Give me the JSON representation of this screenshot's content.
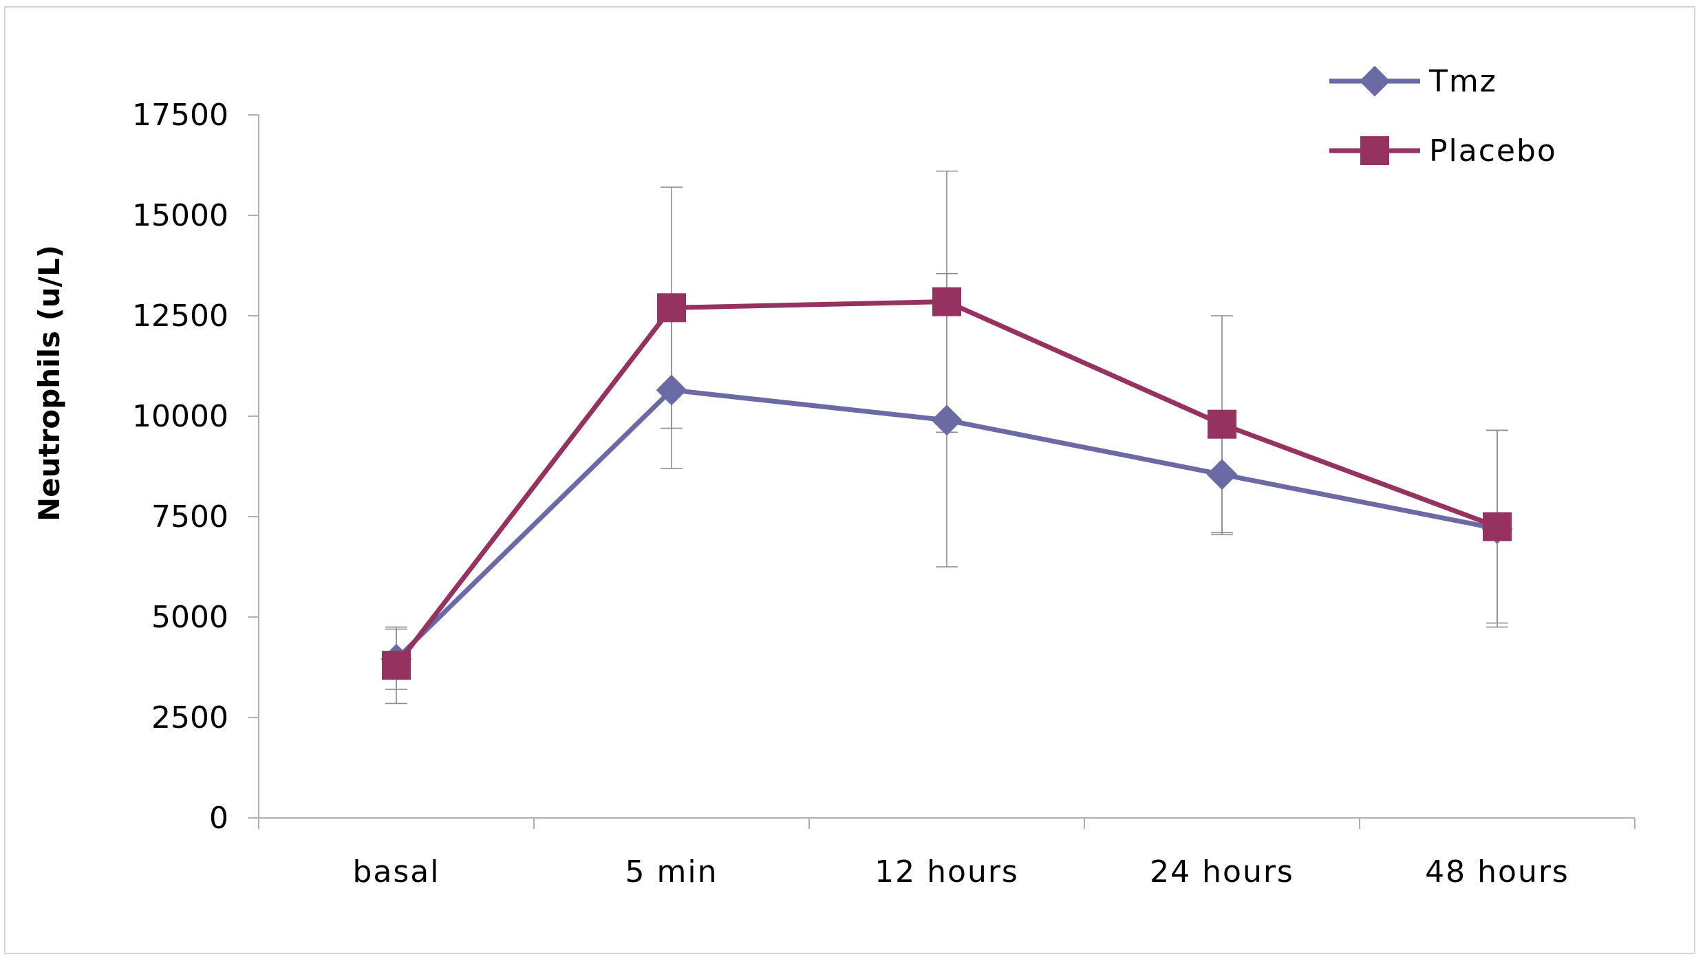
{
  "chart_data": {
    "type": "line",
    "title": "",
    "xlabel": "",
    "ylabel": "Neutrophils (u/L)",
    "categories": [
      "basal",
      "5 min",
      "12 hours",
      "24 hours",
      "48 hours"
    ],
    "ylim": [
      0,
      17500
    ],
    "yticks": [
      0,
      2500,
      5000,
      7500,
      10000,
      12500,
      15000,
      17500
    ],
    "ytick_labels": [
      "0",
      "2500",
      "5000",
      "7500",
      "10000",
      "12500",
      "15000",
      "17500"
    ],
    "grid": false,
    "legend_position": "top-right",
    "series": [
      {
        "name": "Tmz",
        "color": "#6b6aa5",
        "marker": "diamond",
        "values": [
          3950,
          10650,
          9900,
          8550,
          7200
        ],
        "error": [
          750,
          1950,
          3650,
          1500,
          2450
        ]
      },
      {
        "name": "Placebo",
        "color": "#953260",
        "marker": "square",
        "values": [
          3800,
          12700,
          12850,
          9800,
          7250
        ],
        "error": [
          950,
          3000,
          3250,
          2700,
          2400
        ]
      }
    ]
  }
}
